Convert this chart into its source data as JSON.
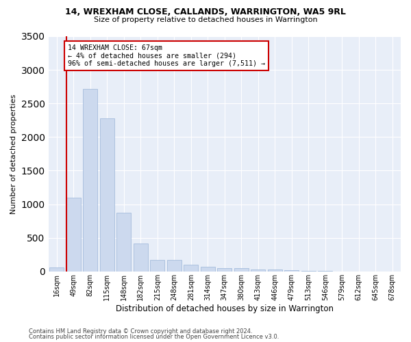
{
  "title1": "14, WREXHAM CLOSE, CALLANDS, WARRINGTON, WA5 9RL",
  "title2": "Size of property relative to detached houses in Warrington",
  "xlabel": "Distribution of detached houses by size in Warrington",
  "ylabel": "Number of detached properties",
  "categories": [
    "16sqm",
    "49sqm",
    "82sqm",
    "115sqm",
    "148sqm",
    "182sqm",
    "215sqm",
    "248sqm",
    "281sqm",
    "314sqm",
    "347sqm",
    "380sqm",
    "413sqm",
    "446sqm",
    "479sqm",
    "513sqm",
    "546sqm",
    "579sqm",
    "612sqm",
    "645sqm",
    "678sqm"
  ],
  "values": [
    55,
    1100,
    2720,
    2280,
    870,
    420,
    175,
    170,
    95,
    65,
    50,
    45,
    30,
    25,
    20,
    10,
    5,
    0,
    0,
    0,
    0
  ],
  "bar_color": "#ccd9ee",
  "bar_edgecolor": "#9ab4d8",
  "highlight_color": "#cc0000",
  "annotation_title": "14 WREXHAM CLOSE: 67sqm",
  "annotation_line1": "← 4% of detached houses are smaller (294)",
  "annotation_line2": "96% of semi-detached houses are larger (7,511) →",
  "footer1": "Contains HM Land Registry data © Crown copyright and database right 2024.",
  "footer2": "Contains public sector information licensed under the Open Government Licence v3.0.",
  "ylim": [
    0,
    3500
  ],
  "yticks": [
    0,
    500,
    1000,
    1500,
    2000,
    2500,
    3000,
    3500
  ],
  "bg_color": "#e8eef8",
  "fig_bg": "#ffffff"
}
